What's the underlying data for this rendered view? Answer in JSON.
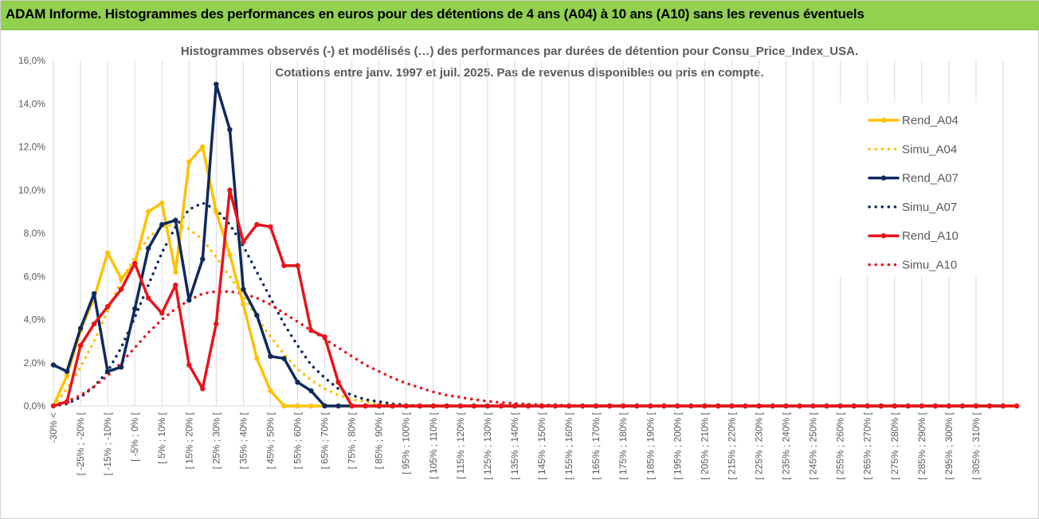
{
  "header": {
    "title": "ADAM Informe. Histogrammes des performances en euros pour des détentions de 4 ans (A04) à 10 ans (A10) sans les revenus éventuels"
  },
  "chart_data": {
    "type": "line",
    "subtitle_line1": "Histogrammes observés (-)  et modélisés (…) des performances par durées de détention pour Consu_Price_Index_USA.",
    "subtitle_line2": "Cotations entre janv. 1997 et juil. 2025. Pas de revenus disponibles ou pris en compte.",
    "y_tick_labels": [
      "0,0%",
      "2,0%",
      "4,0%",
      "6,0%",
      "8,0%",
      "10,0%",
      "12,0%",
      "14,0%",
      "16,0%"
    ],
    "ylim": [
      0,
      16
    ],
    "grid": "vertical",
    "legend_position": "right",
    "x_labels": [
      "-30% <",
      "[ -25% ; -20% [",
      "[ -15% ; -10% [",
      "[ -5% ; 0% [",
      "[ 5% ; 10% [",
      "[ 15% ; 20% [",
      "[ 25% ; 30% [",
      "[ 35% ; 40% [",
      "[ 45% ; 50% [",
      "[ 55% ; 60% [",
      "[ 65% ; 70% [",
      "[ 75% ; 80% [",
      "[ 85% ; 90% [",
      "[ 95% ; 100% [",
      "[ 105% ; 110% [",
      "[ 115% ; 120% [",
      "[ 125% ; 130% [",
      "[ 135% ; 140% [",
      "[ 145% ; 150% [",
      "[ 155% ; 160% [",
      "[ 165% ; 170% [",
      "[ 175% ; 180% [",
      "[ 185% ; 190% [",
      "[ 195% ; 200% [",
      "[ 205% ; 210% [",
      "[ 215% ; 220% [",
      "[ 225% ; 230% [",
      "[ 235% ; 240% [",
      "[ 245% ; 250% [",
      "[ 255% ; 260% [",
      "[ 265% ; 270% [",
      "[ 275% ; 280% [",
      "[ 285% ; 290% [",
      "[ 295% ; 300% [",
      "[ 305% ; 310% ["
    ],
    "series": [
      {
        "name": "Rend_A04",
        "style": "solid",
        "color": "#ffc000",
        "markers": true,
        "values": [
          0,
          1.4,
          3.5,
          5.0,
          7.1,
          5.9,
          6.6,
          9.0,
          9.4,
          6.2,
          11.3,
          12.0,
          9.0,
          7.0,
          4.7,
          2.2,
          0.7,
          0,
          0,
          0,
          0,
          0,
          0,
          0,
          0,
          0,
          0,
          0,
          0,
          0,
          0,
          0,
          0,
          0,
          0,
          0,
          0,
          0,
          0,
          0,
          0,
          0,
          0,
          0,
          0,
          0,
          0,
          0,
          0,
          0,
          0,
          0,
          0,
          0,
          0,
          0,
          0,
          0,
          0,
          0,
          0,
          0,
          0,
          0,
          0,
          0,
          0,
          0,
          0,
          0,
          0,
          0
        ]
      },
      {
        "name": "Simu_A04",
        "style": "dotted",
        "color": "#ffc000",
        "markers": false,
        "values": [
          0,
          0.8,
          1.8,
          3.0,
          4.4,
          5.8,
          6.9,
          7.8,
          8.3,
          8.4,
          8.2,
          7.7,
          6.9,
          6.0,
          5.1,
          4.1,
          3.2,
          2.4,
          1.7,
          1.2,
          0.8,
          0.5,
          0.3,
          0.2,
          0.1,
          0.05,
          0,
          0,
          0,
          0,
          0,
          0,
          0,
          0,
          0,
          0,
          0,
          0,
          0,
          0,
          0,
          0,
          0,
          0,
          0,
          0,
          0,
          0,
          0,
          0,
          0,
          0,
          0,
          0,
          0,
          0,
          0,
          0,
          0,
          0,
          0,
          0,
          0,
          0,
          0,
          0,
          0,
          0,
          0,
          0,
          0
        ]
      },
      {
        "name": "Rend_A07",
        "style": "solid",
        "color": "#0f2a5c",
        "markers": true,
        "values": [
          1.9,
          1.6,
          3.6,
          5.2,
          1.6,
          1.8,
          4.5,
          7.3,
          8.4,
          8.6,
          4.9,
          6.8,
          14.9,
          12.8,
          5.4,
          4.2,
          2.3,
          2.2,
          1.1,
          0.7,
          0,
          0,
          0,
          0,
          0,
          0,
          0,
          0,
          0,
          0,
          0,
          0,
          0,
          0,
          0,
          0,
          0,
          0,
          0,
          0,
          0,
          0,
          0,
          0,
          0,
          0,
          0,
          0,
          0,
          0,
          0,
          0,
          0,
          0,
          0,
          0,
          0,
          0,
          0,
          0,
          0,
          0,
          0,
          0,
          0,
          0,
          0,
          0,
          0,
          0,
          0
        ]
      },
      {
        "name": "Simu_A07",
        "style": "dotted",
        "color": "#0f2a5c",
        "markers": false,
        "values": [
          0,
          0.1,
          0.4,
          0.9,
          1.6,
          2.7,
          4.1,
          5.6,
          7.1,
          8.3,
          9.1,
          9.4,
          9.1,
          8.4,
          7.4,
          6.2,
          5.0,
          3.8,
          2.8,
          1.9,
          1.3,
          0.8,
          0.5,
          0.3,
          0.2,
          0.1,
          0.05,
          0,
          0,
          0,
          0,
          0,
          0,
          0,
          0,
          0,
          0,
          0,
          0,
          0,
          0,
          0,
          0,
          0,
          0,
          0,
          0,
          0,
          0,
          0,
          0,
          0,
          0,
          0,
          0,
          0,
          0,
          0,
          0,
          0,
          0,
          0,
          0,
          0,
          0,
          0,
          0,
          0,
          0,
          0,
          0,
          0
        ]
      },
      {
        "name": "Rend_A10",
        "style": "solid",
        "color": "#e8141b",
        "markers": true,
        "values": [
          0,
          0.2,
          2.8,
          3.8,
          4.6,
          5.4,
          6.6,
          5.0,
          4.3,
          5.6,
          1.9,
          0.8,
          3.8,
          10.0,
          7.6,
          8.4,
          8.3,
          6.5,
          6.5,
          3.5,
          3.2,
          1.1,
          0,
          0,
          0,
          0,
          0,
          0,
          0,
          0,
          0,
          0,
          0,
          0,
          0,
          0,
          0,
          0,
          0,
          0,
          0,
          0,
          0,
          0,
          0,
          0,
          0,
          0,
          0,
          0,
          0,
          0,
          0,
          0,
          0,
          0,
          0,
          0,
          0,
          0,
          0,
          0,
          0,
          0,
          0,
          0,
          0,
          0,
          0,
          0,
          0,
          0
        ]
      },
      {
        "name": "Simu_A10",
        "style": "dotted",
        "color": "#e8141b",
        "markers": false,
        "values": [
          0.05,
          0.2,
          0.5,
          0.9,
          1.4,
          2.0,
          2.7,
          3.4,
          4.0,
          4.5,
          4.9,
          5.2,
          5.3,
          5.3,
          5.2,
          5.0,
          4.7,
          4.3,
          3.9,
          3.5,
          3.1,
          2.7,
          2.3,
          1.9,
          1.6,
          1.3,
          1.05,
          0.85,
          0.65,
          0.5,
          0.4,
          0.3,
          0.22,
          0.16,
          0.12,
          0.08,
          0.06,
          0.04,
          0.03,
          0.02,
          0.01,
          0,
          0,
          0,
          0,
          0,
          0,
          0,
          0,
          0,
          0,
          0,
          0,
          0,
          0,
          0,
          0,
          0,
          0,
          0,
          0,
          0,
          0,
          0,
          0,
          0,
          0,
          0,
          0,
          0,
          0
        ]
      }
    ]
  },
  "colors": {
    "title_bar": "#92d050",
    "rend_a04": "#ffc000",
    "rend_a07": "#0f2a5c",
    "rend_a10": "#e8141b",
    "grid": "#d9d9d9"
  }
}
